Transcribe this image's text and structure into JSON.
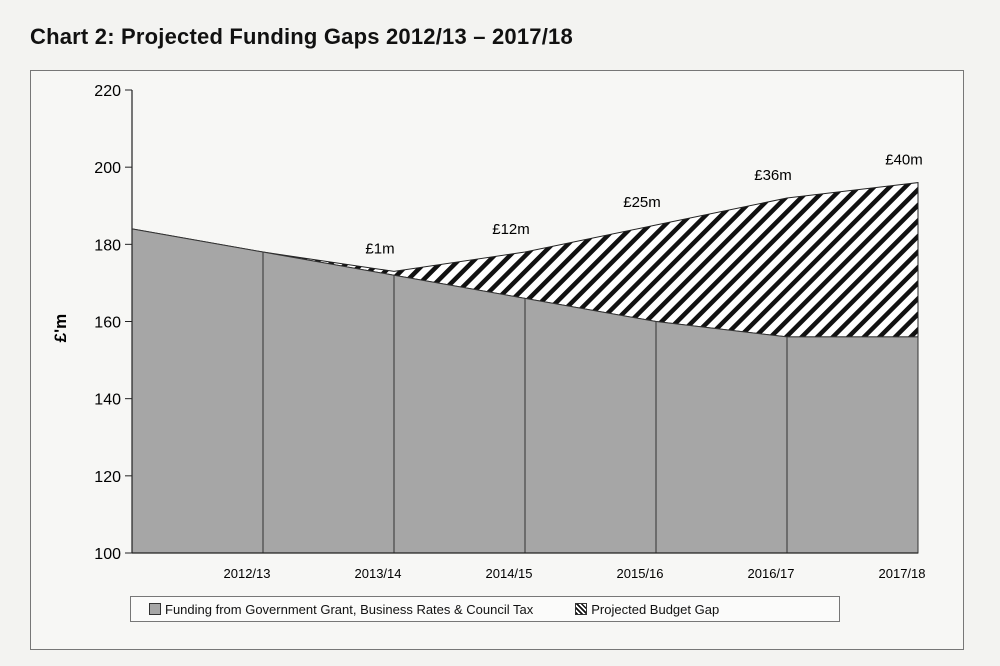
{
  "title": "Chart 2: Projected Funding Gaps  2012/13 – 2017/18",
  "chart_data": {
    "type": "area",
    "title": "Chart 2: Projected Funding Gaps  2012/13 – 2017/18",
    "xlabel": "",
    "ylabel": "£'m",
    "ylim": [
      100,
      220
    ],
    "yticks": [
      100,
      120,
      140,
      160,
      180,
      200,
      220
    ],
    "categories": [
      "",
      "2012/13",
      "2013/14",
      "2014/15",
      "2015/16",
      "2016/17",
      "2017/18"
    ],
    "series": [
      {
        "name": "Funding from Government Grant, Business Rates & Council Tax",
        "values": [
          184,
          178,
          172,
          166,
          160,
          156,
          156
        ],
        "color": "#a6a6a6"
      },
      {
        "name": "Projected Budget Gap",
        "values": [
          0,
          0,
          1,
          12,
          25,
          36,
          40
        ],
        "fill": "hatch"
      }
    ],
    "gap_labels": [
      "",
      "",
      "£1m",
      "£12m",
      "£25m",
      "£36m",
      "£40m"
    ],
    "legend": "bottom"
  },
  "legend": {
    "funding": "Funding from Government Grant, Business Rates & Council Tax",
    "gap": "Projected Budget Gap"
  }
}
